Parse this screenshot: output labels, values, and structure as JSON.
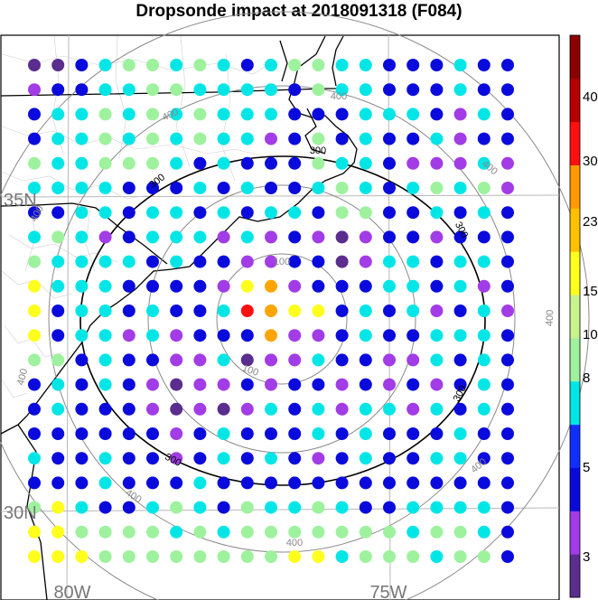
{
  "title": "Dropsonde impact at 2018091318 (F084)",
  "lat_labels": [
    "35N",
    "30N"
  ],
  "lon_labels": [
    "80W",
    "75W"
  ],
  "ring_labels": {
    "inner": "100",
    "middle": "300",
    "outer": "400"
  },
  "colorbar": {
    "tick_labels": [
      "3",
      "5",
      "8",
      "10",
      "15",
      "23",
      "30",
      "40"
    ],
    "colors": [
      "#5b2d8e",
      "#a23ce6",
      "#0a0adc",
      "#0f2fff",
      "#00e6e6",
      "#9ef29e",
      "#c8f28c",
      "#ffff1e",
      "#ffc000",
      "#ff9a00",
      "#ff1010",
      "#b80000",
      "#8a0000"
    ]
  },
  "dot_colors": {
    "dark_purple": "#5b2d8e",
    "purple": "#a23ce6",
    "blue": "#0a0adc",
    "cyan": "#00e6e6",
    "light_green": "#9ef29e",
    "yellow": "#ffff1e",
    "orange": "#ffa500",
    "red": "#ff1010"
  },
  "grid_rows": [
    "DDBCGGCGCBCGGCCBBBCBB",
    "PBBCCGGCCCCBGCCBBBCBB",
    "BCCGCGCGCCCBBBCCCBPCB",
    "BCCGCGCGCCPBGBCBBCPBB",
    "GCCGGGCBCBBBGCCBPPPCP",
    "CCCCBBBCBCBBCGCBCGCGP",
    "BBCCBCCBCBCCBGGBBCBCB",
    "CGCPBCCCPCPBPDPBBPBBB",
    "GCCCCBCBBPPBBDPCCBCCB",
    "YCCCBBBBPYOPBBBCCBCPB",
    "YBCCBCBBCRONYBCBCPBCP",
    "YBCCPCPBBBOPPBCBBCCCB",
    "GGBCBBPPCDPPCBBPPCBCB",
    "BCBCBPDPPBPBBPBPBPBCB",
    "BCBBBPDPDPCBCPCCPCBCB",
    "BBBBBBPBCBBBCBCBBBCBB",
    "CBBCBBPBCBCBPBCBBCCBB",
    "BBBCBBBCBBBBBBBBBBBBB",
    "GYCBBCGCBGCCGCBBCCCCB",
    "YYGGGGCGCGGGGGGGCGGCB",
    "YYYGGGGGGGGYYCGGGCGGB"
  ],
  "color_codes": {
    "D": "dark_purple",
    "P": "purple",
    "B": "blue",
    "C": "cyan",
    "G": "light_green",
    "Y": "yellow",
    "O": "orange",
    "R": "red",
    "N": "yellow"
  }
}
